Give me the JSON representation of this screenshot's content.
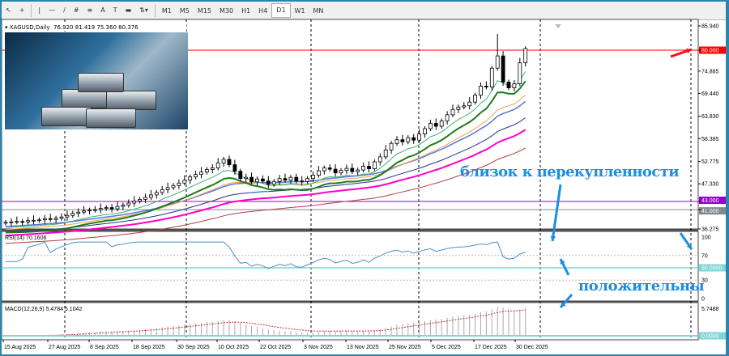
{
  "toolbar": {
    "tools": [
      "cursor-icon",
      "crosshair-icon",
      "vertical-line-icon",
      "horizontal-line-icon",
      "trendline-icon",
      "fibonacci-icon",
      "channel-icon",
      "text-icon",
      "label-icon",
      "rectangle-icon",
      "arrows-icon"
    ],
    "text_tool": "A",
    "timeframes": [
      "M1",
      "M5",
      "M15",
      "M30",
      "H1",
      "H4",
      "D1",
      "W1",
      "MN"
    ],
    "selected_timeframe": "D1"
  },
  "header": {
    "symbol": "XAGUSD,Daily",
    "ohlc": "76.920 81.419 75.360 80.376"
  },
  "annotations": {
    "overbought": "близок к перекупленности",
    "positive": "положительны"
  },
  "chart_data": {
    "type": "candlestick",
    "symbol": "XAGUSD",
    "timeframe": "Daily",
    "ylim": [
      36.275,
      85.94
    ],
    "y_ticks": [
      "85.940",
      "80.000",
      "74.885",
      "69.440",
      "63.830",
      "58.385",
      "52.775",
      "47.330",
      "43.000",
      "41.000",
      "36.275"
    ],
    "levels": [
      {
        "value": 80.0,
        "label": "80.000",
        "color": "#ff0000"
      },
      {
        "value": 43.0,
        "label": "43.000",
        "color": "#9900cc"
      },
      {
        "value": 41.0,
        "label": "41.000",
        "color": "#808890"
      }
    ],
    "x_labels": [
      "15 Aug 2025",
      "27 Aug 2025",
      "8 Sep 2025",
      "18 Sep 2025",
      "30 Sep 2025",
      "10 Oct 2025",
      "22 Oct 2025",
      "3 Nov 2025",
      "13 Nov 2025",
      "25 Nov 2025",
      "5 Dec 2025",
      "17 Dec 2025",
      "30 Dec 2025"
    ],
    "closes": [
      37.9,
      38.0,
      38.1,
      38.0,
      38.3,
      38.4,
      38.5,
      38.8,
      38.6,
      38.9,
      39.2,
      39.6,
      40.1,
      40.4,
      40.7,
      40.9,
      41.0,
      41.3,
      41.5,
      41.2,
      41.8,
      42.1,
      42.6,
      43.1,
      43.5,
      44.0,
      44.6,
      45.2,
      45.9,
      46.4,
      46.9,
      47.5,
      48.2,
      49.0,
      49.6,
      50.2,
      50.8,
      51.2,
      52.4,
      53.3,
      52.0,
      50.4,
      48.6,
      48.9,
      47.8,
      48.5,
      48.0,
      47.2,
      47.9,
      48.6,
      48.2,
      48.9,
      48.0,
      47.9,
      48.6,
      49.4,
      50.5,
      51.2,
      50.9,
      50.0,
      50.6,
      51.1,
      50.3,
      50.7,
      51.6,
      51.0,
      52.7,
      53.9,
      55.6,
      57.2,
      58.1,
      57.6,
      58.6,
      58.0,
      59.5,
      60.8,
      62.1,
      61.4,
      62.7,
      64.2,
      65.5,
      66.1,
      66.4,
      67.3,
      69.0,
      71.2,
      71.0,
      75.6,
      78.6,
      72.2,
      70.8,
      71.8,
      76.9,
      80.376
    ],
    "highs_extra": {
      "index": 88,
      "high": 84.0
    },
    "indicators": {
      "rsi": {
        "label": "RSI(14) 70.1606",
        "ticks": [
          "100",
          "70",
          "50.0000",
          "30",
          "0"
        ],
        "levels": [
          70,
          50,
          30
        ]
      },
      "macd": {
        "label": "MACD(12,26,9) 5.4784 5.1042",
        "ticks": [
          "5.7488",
          "0.0000"
        ]
      }
    },
    "colors": {
      "bull": "#000000",
      "bear": "#000000",
      "ema_fast": "#3cb371",
      "ema_slow": "#1e7b1e",
      "ma50": "#f0a050",
      "ma100": "#5577dd",
      "ma150": "#223388",
      "ma200": "#ff00cc",
      "ma250": "#b04040",
      "rsi": "#4a90c8",
      "macd_signal": "#c03030"
    }
  }
}
